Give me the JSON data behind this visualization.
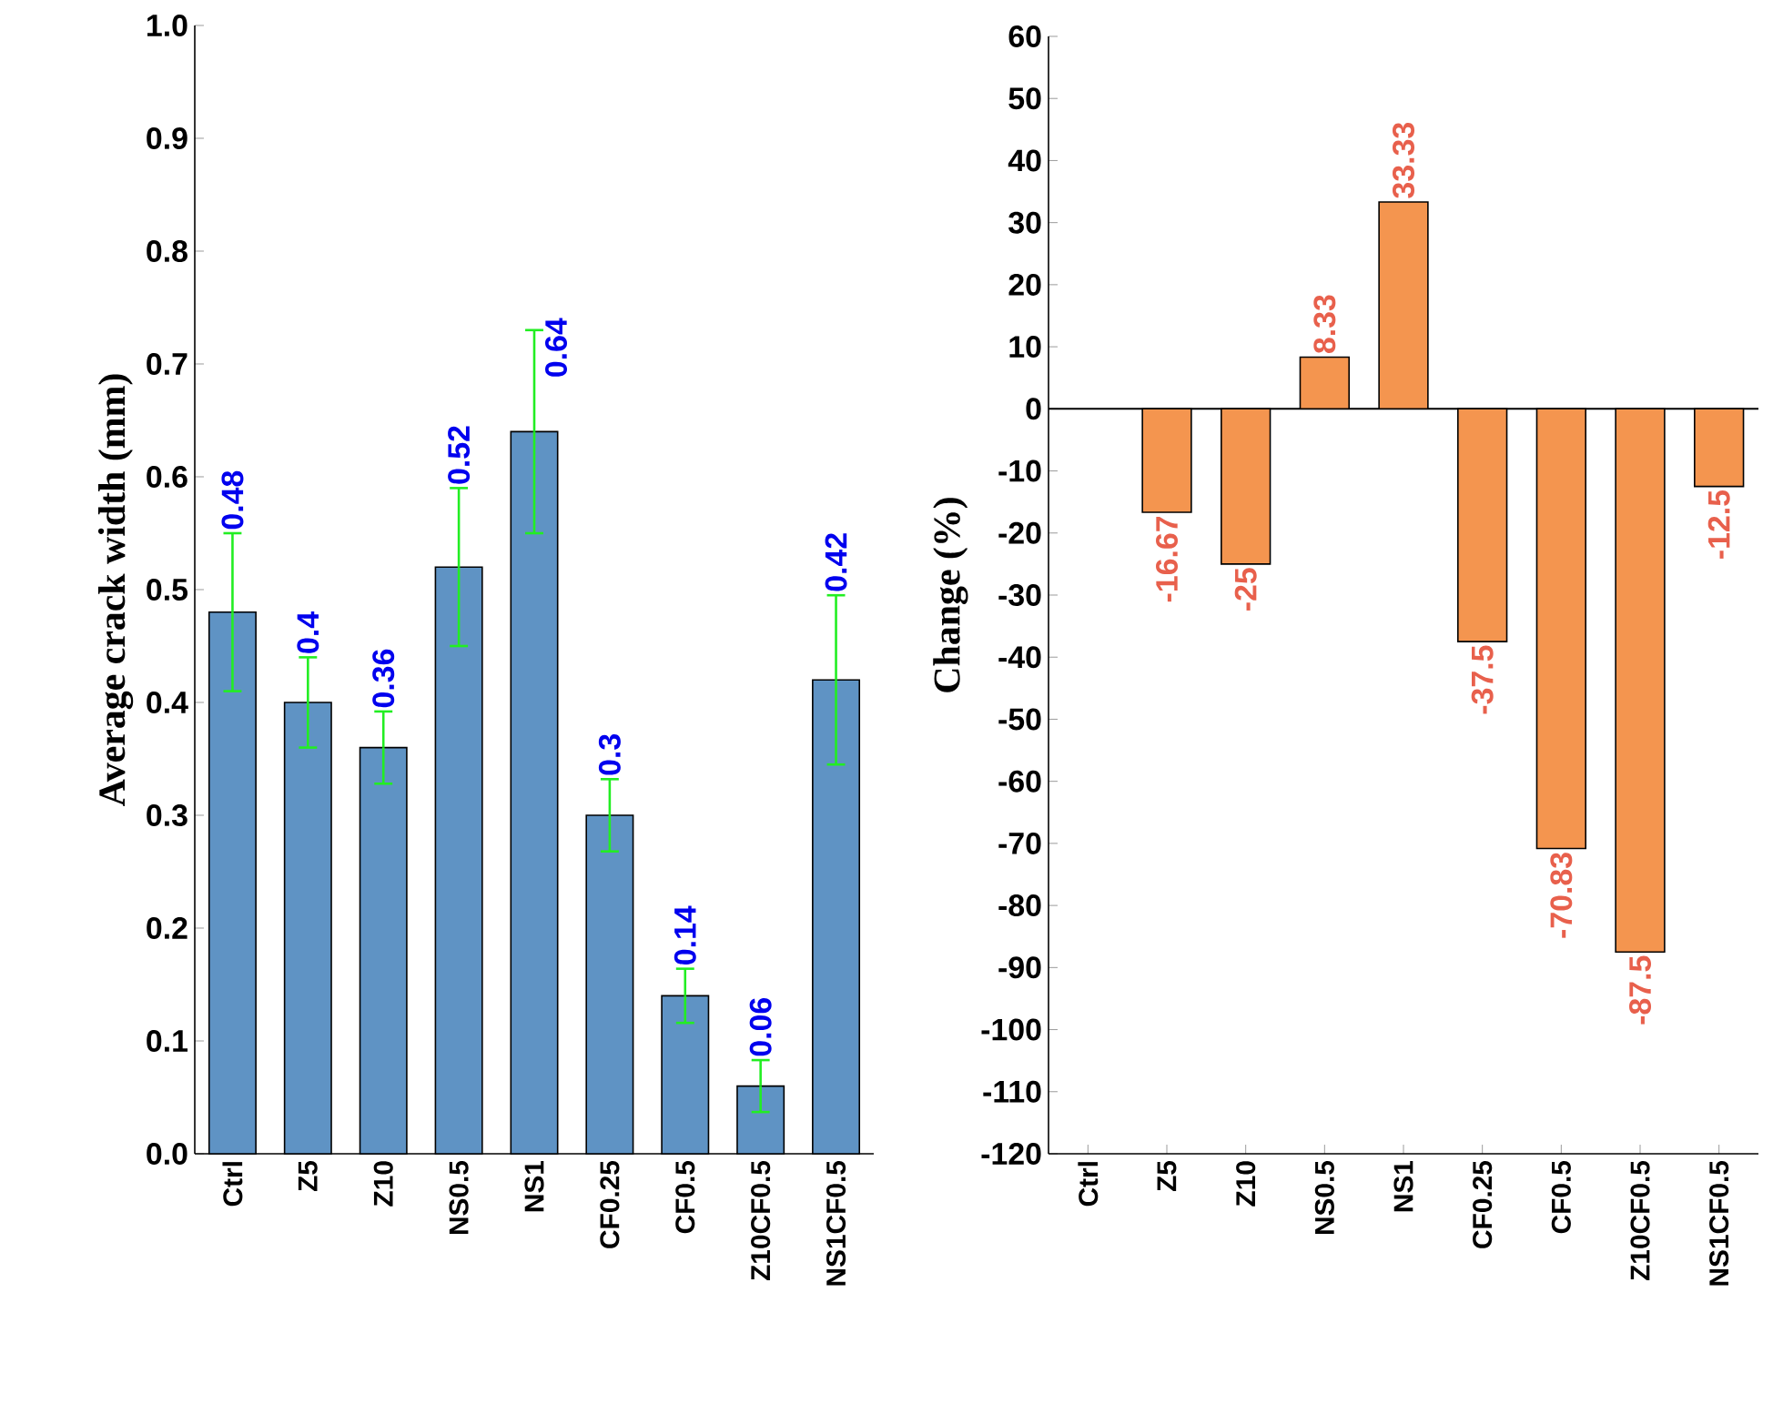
{
  "chart_data": [
    {
      "type": "bar",
      "ylabel": "Average crack width (mm)",
      "categories": [
        "Ctrl",
        "Z5",
        "Z10",
        "NS0.5",
        "NS1",
        "CF0.25",
        "CF0.5",
        "Z10CF0.5",
        "NS1CF0.5"
      ],
      "values": [
        0.48,
        0.4,
        0.36,
        0.52,
        0.64,
        0.3,
        0.14,
        0.06,
        0.42
      ],
      "errors": [
        0.07,
        0.04,
        0.032,
        0.07,
        0.09,
        0.032,
        0.024,
        0.023,
        0.075
      ],
      "value_labels": [
        "0.48",
        "0.4",
        "0.36",
        "0.52",
        "0.64",
        "0.3",
        "0.14",
        "0.06",
        "0.42"
      ],
      "color": "#5f93c4",
      "ylim": [
        0,
        1.0
      ],
      "yticks": [
        {
          "value": 0,
          "label": "0.0"
        },
        {
          "value": 0.1,
          "label": "0.1"
        },
        {
          "value": 0.2,
          "label": "0.2"
        },
        {
          "value": 0.3,
          "label": "0.3"
        },
        {
          "value": 0.4,
          "label": "0.4"
        },
        {
          "value": 0.5,
          "label": "0.5"
        },
        {
          "value": 0.6,
          "label": "0.6"
        },
        {
          "value": 0.7,
          "label": "0.7"
        },
        {
          "value": 0.8,
          "label": "0.8"
        },
        {
          "value": 0.9,
          "label": "0.9"
        },
        {
          "value": 1.0,
          "label": "1.0"
        }
      ]
    },
    {
      "type": "bar",
      "ylabel": "Change (%)",
      "categories": [
        "Ctrl",
        "Z5",
        "Z10",
        "NS0.5",
        "NS1",
        "CF0.25",
        "CF0.5",
        "Z10CF0.5",
        "NS1CF0.5"
      ],
      "values": [
        null,
        -16.67,
        -25,
        8.33,
        33.33,
        -37.5,
        -70.83,
        -87.5,
        -12.5
      ],
      "value_labels": [
        null,
        "-16.67",
        "-25",
        "8.33",
        "33.33",
        "-37.5",
        "-70.83",
        "-87.5",
        "-12.5"
      ],
      "color": "#f4954f",
      "ylim": [
        -120,
        60
      ],
      "yticks": [
        -120,
        -110,
        -100,
        -90,
        -80,
        -70,
        -60,
        -50,
        -40,
        -30,
        -20,
        -10,
        0,
        10,
        20,
        30,
        40,
        50,
        60
      ],
      "ref_lines": [
        {
          "axis": "y",
          "value": 0,
          "color": "#000000"
        }
      ]
    }
  ]
}
